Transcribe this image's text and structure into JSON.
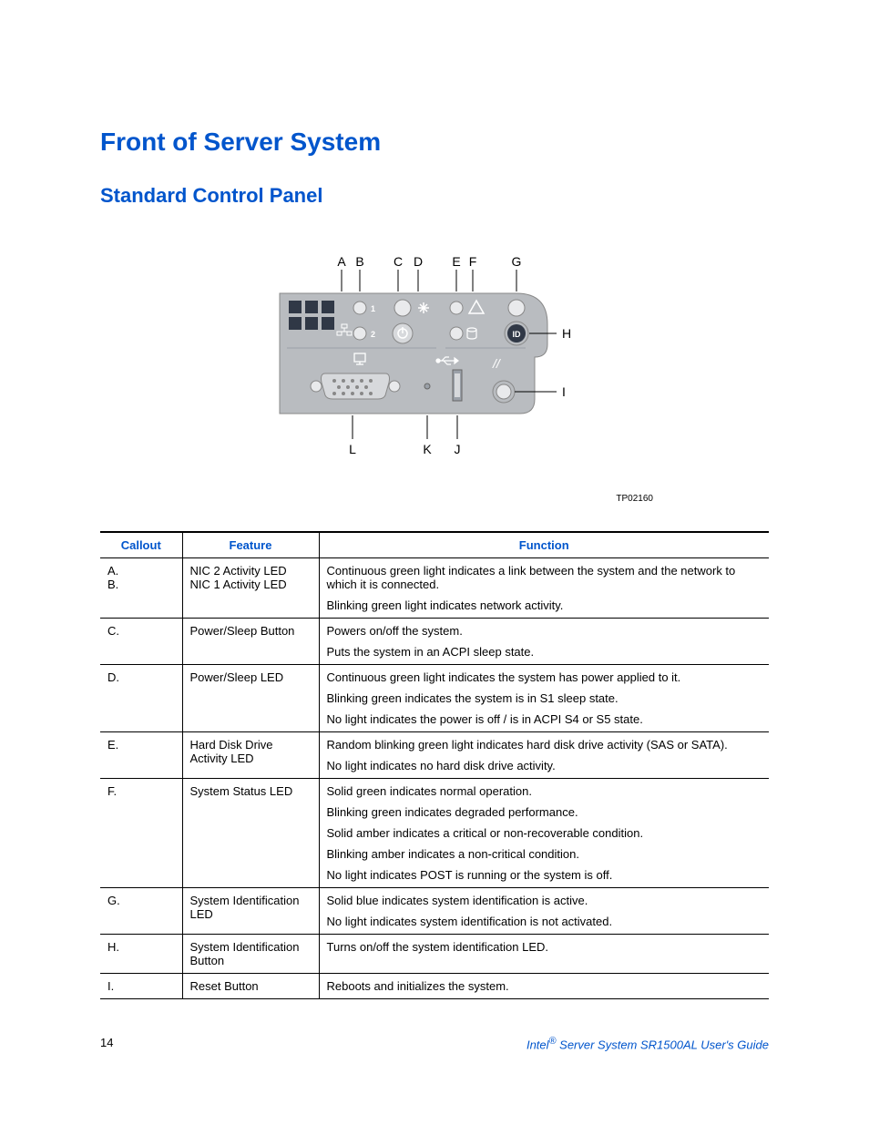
{
  "headings": {
    "title": "Front of Server System",
    "subtitle": "Standard Control Panel"
  },
  "figure": {
    "id": "TP02160",
    "callout_labels": {
      "top": [
        "A",
        "B",
        "C",
        "D",
        "E",
        "F",
        "G"
      ],
      "right": [
        "H",
        "I"
      ],
      "bottom": [
        "L",
        "K",
        "J"
      ]
    },
    "panel": {
      "background_color": "#b9bcc0",
      "accent_color": "#303846",
      "led_fill": "#e9eaec",
      "id_button_fill": "#303846",
      "id_button_text": "ID",
      "port_labels": {
        "led1": "1",
        "led2": "2"
      },
      "callout_line_color": "#000000",
      "callout_font_size": 13
    }
  },
  "table": {
    "headers": {
      "callout": "Callout",
      "feature": "Feature",
      "function": "Function"
    },
    "header_color": "#0055cc",
    "rows": [
      {
        "callout_lines": [
          "A.",
          "B."
        ],
        "feature_lines": [
          "NIC 2 Activity LED",
          "NIC 1 Activity LED"
        ],
        "function_paras": [
          "Continuous green light indicates a link between the system and the network to which it is connected.",
          "Blinking green light indicates network activity."
        ]
      },
      {
        "callout_lines": [
          "C."
        ],
        "feature_lines": [
          "Power/Sleep Button"
        ],
        "function_paras": [
          "Powers on/off the system.",
          "Puts the system in an ACPI sleep state."
        ]
      },
      {
        "callout_lines": [
          "D."
        ],
        "feature_lines": [
          "Power/Sleep LED"
        ],
        "function_paras": [
          "Continuous green light indicates the system has power applied to it.",
          "Blinking green indicates the system is in S1 sleep state.",
          "No light indicates the power is off / is in ACPI S4 or S5 state."
        ]
      },
      {
        "callout_lines": [
          "E."
        ],
        "feature_lines": [
          "Hard Disk Drive Activity LED"
        ],
        "function_paras": [
          "Random blinking green light indicates hard disk drive activity (SAS or SATA).",
          "No light indicates no hard disk drive activity."
        ]
      },
      {
        "callout_lines": [
          "F."
        ],
        "feature_lines": [
          "System Status LED"
        ],
        "function_paras": [
          "Solid green indicates normal operation.",
          "Blinking green indicates degraded performance.",
          "Solid amber indicates a critical or non-recoverable condition.",
          "Blinking amber indicates a non-critical condition.",
          "No light indicates POST is running or the system is off."
        ]
      },
      {
        "callout_lines": [
          "G."
        ],
        "feature_lines": [
          "System Identification LED"
        ],
        "function_paras": [
          "Solid blue indicates system identification is active.",
          "No light indicates system identification is not activated."
        ]
      },
      {
        "callout_lines": [
          "H."
        ],
        "feature_lines": [
          "System Identification Button"
        ],
        "function_paras": [
          "Turns on/off the system identification LED."
        ]
      },
      {
        "callout_lines": [
          "I."
        ],
        "feature_lines": [
          "Reset Button"
        ],
        "function_paras": [
          "Reboots and initializes the system."
        ]
      }
    ],
    "bottom_border": true
  },
  "footer": {
    "page_number": "14",
    "doc_prefix": "Intel",
    "doc_reg": "®",
    "doc_rest": " Server System SR1500AL User's Guide"
  }
}
